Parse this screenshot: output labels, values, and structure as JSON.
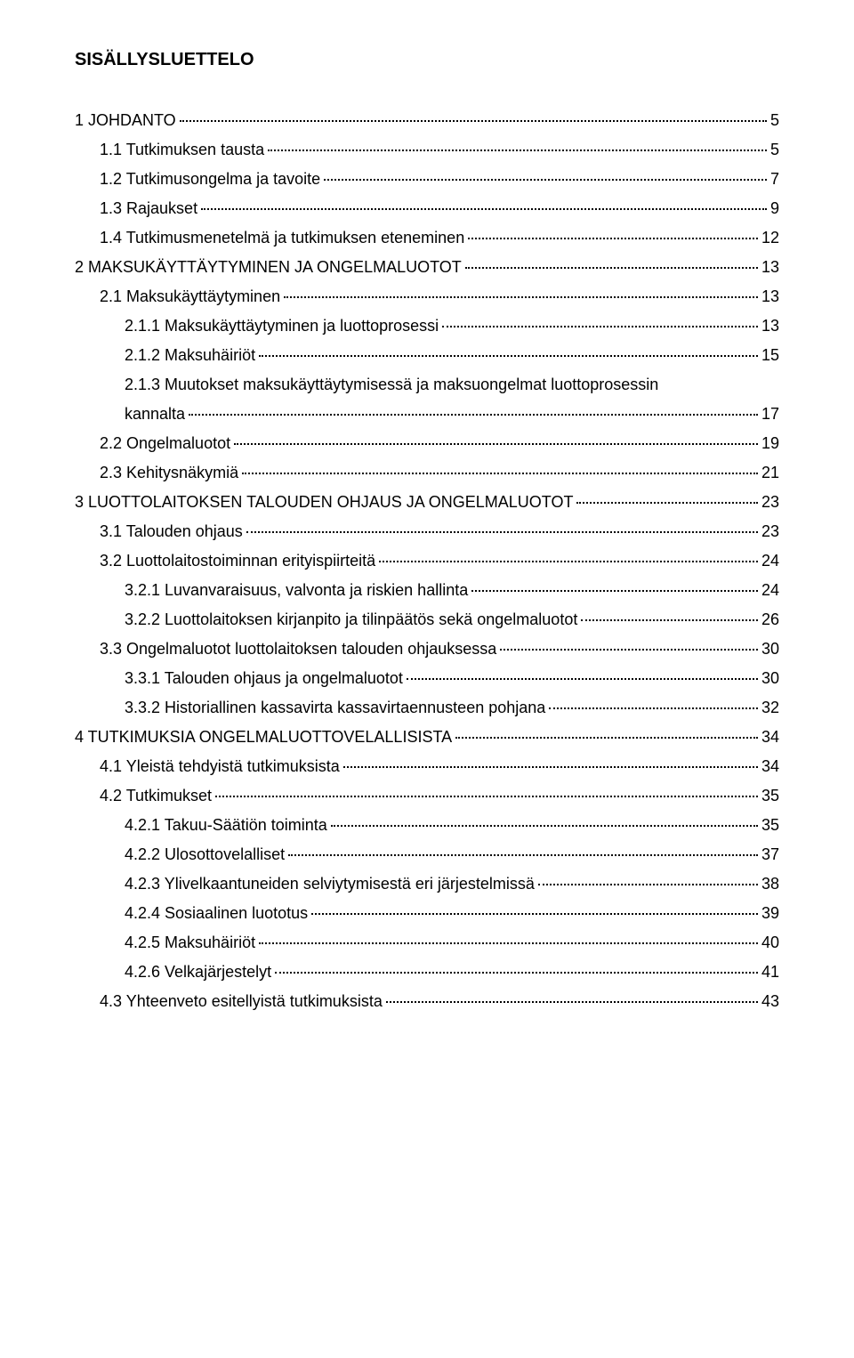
{
  "title": "SISÄLLYSLUETTELO",
  "entries": [
    {
      "label": "1 JOHDANTO",
      "page": "5",
      "indent": 0
    },
    {
      "label": "1.1 Tutkimuksen tausta",
      "page": "5",
      "indent": 1
    },
    {
      "label": "1.2 Tutkimusongelma ja tavoite",
      "page": "7",
      "indent": 1
    },
    {
      "label": "1.3 Rajaukset",
      "page": "9",
      "indent": 1
    },
    {
      "label": "1.4 Tutkimusmenetelmä ja tutkimuksen eteneminen",
      "page": "12",
      "indent": 1
    },
    {
      "label": "2 MAKSUKÄYTTÄYTYMINEN JA ONGELMALUOTOT",
      "page": "13",
      "indent": 0
    },
    {
      "label": "2.1 Maksukäyttäytyminen",
      "page": "13",
      "indent": 1
    },
    {
      "label": "2.1.1 Maksukäyttäytyminen ja luottoprosessi",
      "page": "13",
      "indent": 2
    },
    {
      "label": "2.1.2 Maksuhäiriöt",
      "page": "15",
      "indent": 2
    },
    {
      "label": "2.1.3 Muutokset maksukäyttäytymisessä ja maksuongelmat luottoprosessin",
      "cont": "kannalta",
      "page": "17",
      "indent": 2
    },
    {
      "label": "2.2 Ongelmaluotot",
      "page": "19",
      "indent": 1
    },
    {
      "label": "2.3 Kehitysnäkymiä",
      "page": "21",
      "indent": 1
    },
    {
      "label": "3 LUOTTOLAITOKSEN TALOUDEN OHJAUS JA  ONGELMALUOTOT",
      "page": "23",
      "indent": 0
    },
    {
      "label": "3.1 Talouden ohjaus",
      "page": "23",
      "indent": 1
    },
    {
      "label": "3.2 Luottolaitostoiminnan erityispiirteitä",
      "page": "24",
      "indent": 1
    },
    {
      "label": "3.2.1 Luvanvaraisuus, valvonta ja riskien hallinta",
      "page": "24",
      "indent": 2
    },
    {
      "label": "3.2.2 Luottolaitoksen kirjanpito ja tilinpäätös sekä ongelmaluotot",
      "page": "26",
      "indent": 2
    },
    {
      "label": "3.3 Ongelmaluotot luottolaitoksen talouden ohjauksessa",
      "page": "30",
      "indent": 1
    },
    {
      "label": "3.3.1 Talouden ohjaus ja ongelmaluotot",
      "page": "30",
      "indent": 2
    },
    {
      "label": "3.3.2 Historiallinen kassavirta kassavirtaennusteen pohjana",
      "page": "32",
      "indent": 2
    },
    {
      "label": "4 TUTKIMUKSIA ONGELMALUOTTOVELALLISISTA",
      "page": "34",
      "indent": 0
    },
    {
      "label": "4.1 Yleistä tehdyistä tutkimuksista",
      "page": "34",
      "indent": 1
    },
    {
      "label": "4.2 Tutkimukset",
      "page": "35",
      "indent": 1
    },
    {
      "label": "4.2.1 Takuu-Säätiön toiminta",
      "page": "35",
      "indent": 2
    },
    {
      "label": "4.2.2 Ulosottovelalliset",
      "page": "37",
      "indent": 2
    },
    {
      "label": "4.2.3 Ylivelkaantuneiden selviytymisestä eri järjestelmissä",
      "page": "38",
      "indent": 2
    },
    {
      "label": "4.2.4 Sosiaalinen luototus",
      "page": "39",
      "indent": 2
    },
    {
      "label": "4.2.5 Maksuhäiriöt",
      "page": "40",
      "indent": 2
    },
    {
      "label": "4.2.6 Velkajärjestelyt",
      "page": "41",
      "indent": 2
    },
    {
      "label": "4.3 Yhteenveto esitellyistä tutkimuksista",
      "page": "43",
      "indent": 1
    }
  ]
}
